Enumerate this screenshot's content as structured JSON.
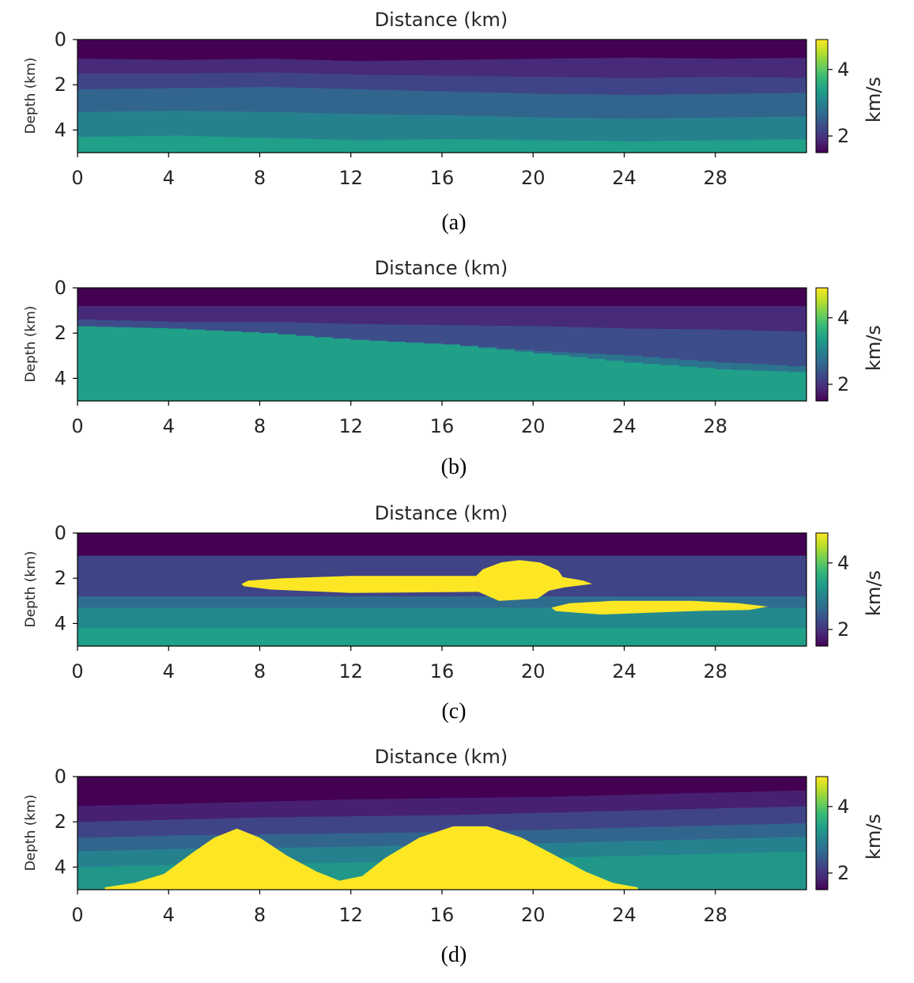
{
  "figure": {
    "colormap": {
      "name": "viridis",
      "min": 1.5,
      "max": 4.9,
      "stops": [
        "#440154",
        "#482878",
        "#3e4989",
        "#31688e",
        "#26828e",
        "#1f9e89",
        "#35b779",
        "#6ece58",
        "#b5de2b",
        "#fde725"
      ]
    }
  },
  "chart_data": [
    {
      "type": "heatmap",
      "model": "layered",
      "title": "Distance (km)",
      "xlabel": "Distance (km)",
      "ylabel": "Depth (km)",
      "xlim": [
        0,
        32
      ],
      "ylim": [
        5,
        0
      ],
      "xticks": [
        "0",
        "4",
        "8",
        "12",
        "16",
        "20",
        "24",
        "28"
      ],
      "yticks": [
        "0",
        "2",
        "4"
      ],
      "colorbar": {
        "label": "km/s",
        "ticks": [
          "4",
          "2"
        ],
        "range": [
          1.5,
          4.9
        ]
      },
      "caption": "(a)",
      "layers": [
        {
          "top": [
            0,
            0
          ],
          "velocity": 1.5
        },
        {
          "top": [
            0.85,
            0.9,
            0.85,
            0.95,
            0.9,
            0.85,
            0.8,
            0.85,
            0.8
          ],
          "velocity": 1.9
        },
        {
          "top": [
            1.5,
            1.5,
            1.45,
            1.55,
            1.6,
            1.65,
            1.7,
            1.65,
            1.7
          ],
          "velocity": 2.2
        },
        {
          "top": [
            2.2,
            2.15,
            2.1,
            2.2,
            2.3,
            2.4,
            2.45,
            2.4,
            2.35
          ],
          "velocity": 2.6
        },
        {
          "top": [
            3.2,
            3.15,
            3.2,
            3.3,
            3.35,
            3.45,
            3.5,
            3.45,
            3.4
          ],
          "velocity": 3.0
        },
        {
          "top": [
            4.3,
            4.25,
            4.35,
            4.45,
            4.4,
            4.45,
            4.5,
            4.45,
            4.4
          ],
          "velocity": 3.4
        }
      ],
      "bodies": []
    },
    {
      "type": "heatmap",
      "model": "faulted",
      "title": "Distance (km)",
      "xlabel": "Distance (km)",
      "ylabel": "Depth (km)",
      "xlim": [
        0,
        32
      ],
      "ylim": [
        5,
        0
      ],
      "xticks": [
        "0",
        "4",
        "8",
        "12",
        "16",
        "20",
        "24",
        "28"
      ],
      "yticks": [
        "0",
        "2",
        "4"
      ],
      "colorbar": {
        "label": "km/s",
        "ticks": [
          "4",
          "2"
        ],
        "range": [
          1.5,
          4.9
        ]
      },
      "caption": "(b)",
      "layers": [
        {
          "top": [
            0,
            0
          ],
          "velocity": 1.5
        },
        {
          "top": [
            0.8,
            0.8
          ],
          "velocity": 1.9
        },
        {
          "top": [
            1.4,
            1.5,
            1.5,
            1.6,
            1.65,
            1.7,
            1.8,
            1.85,
            1.95
          ],
          "velocity": 2.3
        },
        {
          "top": [
            1.8,
            2.0,
            2.0,
            2.4,
            2.5,
            2.8,
            3.0,
            3.3,
            3.5
          ],
          "velocity": 2.8
        },
        {
          "top": [
            1.7,
            1.8,
            2.0,
            2.3,
            2.5,
            2.9,
            3.3,
            3.6,
            3.75
          ],
          "velocity": 3.4
        }
      ],
      "bodies": []
    },
    {
      "type": "heatmap",
      "model": "lenses",
      "title": "Distance (km)",
      "xlabel": "Distance (km)",
      "ylabel": "Depth (km)",
      "xlim": [
        0,
        32
      ],
      "ylim": [
        5,
        0
      ],
      "xticks": [
        "0",
        "4",
        "8",
        "12",
        "16",
        "20",
        "24",
        "28"
      ],
      "yticks": [
        "0",
        "2",
        "4"
      ],
      "colorbar": {
        "label": "km/s",
        "ticks": [
          "4",
          "2"
        ],
        "range": [
          1.5,
          4.9
        ]
      },
      "caption": "(c)",
      "layers": [
        {
          "top": [
            0,
            0
          ],
          "velocity": 1.5
        },
        {
          "top": [
            1.0,
            1.0
          ],
          "velocity": 2.2
        },
        {
          "top": [
            2.8,
            2.8
          ],
          "velocity": 2.7
        },
        {
          "top": [
            3.3,
            3.3
          ],
          "velocity": 3.1
        },
        {
          "top": [
            4.2,
            4.2
          ],
          "velocity": 3.4
        }
      ],
      "bodies": [
        {
          "velocity": 4.9,
          "outline": [
            [
              7.2,
              2.25
            ],
            [
              7.5,
              2.1
            ],
            [
              9,
              2.0
            ],
            [
              12,
              1.9
            ],
            [
              17.5,
              1.9
            ],
            [
              17.8,
              1.6
            ],
            [
              18.6,
              1.3
            ],
            [
              19.4,
              1.2
            ],
            [
              20.3,
              1.3
            ],
            [
              21.1,
              1.65
            ],
            [
              21.3,
              1.95
            ],
            [
              22.2,
              2.1
            ],
            [
              22.6,
              2.25
            ],
            [
              21.4,
              2.4
            ],
            [
              20.7,
              2.55
            ],
            [
              20.2,
              2.9
            ],
            [
              18.5,
              3.0
            ],
            [
              17.6,
              2.6
            ],
            [
              12,
              2.65
            ],
            [
              8.5,
              2.5
            ],
            [
              7.3,
              2.35
            ]
          ]
        },
        {
          "velocity": 4.9,
          "outline": [
            [
              20.8,
              3.3
            ],
            [
              21.6,
              3.1
            ],
            [
              23.5,
              3.0
            ],
            [
              27,
              3.0
            ],
            [
              29,
              3.1
            ],
            [
              30.3,
              3.25
            ],
            [
              29.5,
              3.4
            ],
            [
              27,
              3.45
            ],
            [
              23,
              3.6
            ],
            [
              21,
              3.45
            ]
          ]
        }
      ]
    },
    {
      "type": "heatmap",
      "model": "salt-domes",
      "title": "Distance (km)",
      "xlabel": "Distance (km)",
      "ylabel": "Depth (km)",
      "xlim": [
        0,
        32
      ],
      "ylim": [
        5,
        0
      ],
      "xticks": [
        "0",
        "4",
        "8",
        "12",
        "16",
        "20",
        "24",
        "28"
      ],
      "yticks": [
        "0",
        "2",
        "4"
      ],
      "colorbar": {
        "label": "km/s",
        "ticks": [
          "4",
          "2"
        ],
        "range": [
          1.5,
          4.9
        ]
      },
      "caption": "(d)",
      "layers": [
        {
          "top": [
            0,
            0
          ],
          "velocity": 1.5
        },
        {
          "top": [
            1.3,
            1.2,
            1.1,
            1.0,
            0.95,
            0.9,
            0.8,
            0.7,
            0.6
          ],
          "velocity": 1.8
        },
        {
          "top": [
            2.0,
            1.9,
            1.8,
            1.75,
            1.7,
            1.6,
            1.5,
            1.4,
            1.3
          ],
          "velocity": 2.2
        },
        {
          "top": [
            2.7,
            2.6,
            2.55,
            2.5,
            2.45,
            2.35,
            2.25,
            2.15,
            2.05
          ],
          "velocity": 2.6
        },
        {
          "top": [
            3.3,
            3.2,
            3.15,
            3.1,
            3.0,
            2.95,
            2.85,
            2.75,
            2.65
          ],
          "velocity": 3.0
        },
        {
          "top": [
            4.0,
            3.9,
            3.85,
            3.8,
            3.7,
            3.6,
            3.5,
            3.4,
            3.3
          ],
          "velocity": 3.3
        }
      ],
      "bodies": [
        {
          "velocity": 4.9,
          "outline": [
            [
              1.2,
              4.9
            ],
            [
              2.5,
              4.7
            ],
            [
              3.8,
              4.3
            ],
            [
              5,
              3.4
            ],
            [
              6,
              2.7
            ],
            [
              7,
              2.3
            ],
            [
              8,
              2.7
            ],
            [
              9.2,
              3.5
            ],
            [
              10.5,
              4.2
            ],
            [
              11.5,
              4.6
            ],
            [
              12.5,
              4.4
            ],
            [
              13.5,
              3.6
            ],
            [
              15,
              2.7
            ],
            [
              16.5,
              2.2
            ],
            [
              18,
              2.2
            ],
            [
              19.5,
              2.7
            ],
            [
              21,
              3.5
            ],
            [
              22.3,
              4.2
            ],
            [
              23.5,
              4.7
            ],
            [
              24.6,
              4.9
            ],
            [
              24.6,
              5.0
            ],
            [
              1.2,
              5.0
            ]
          ]
        }
      ]
    }
  ]
}
